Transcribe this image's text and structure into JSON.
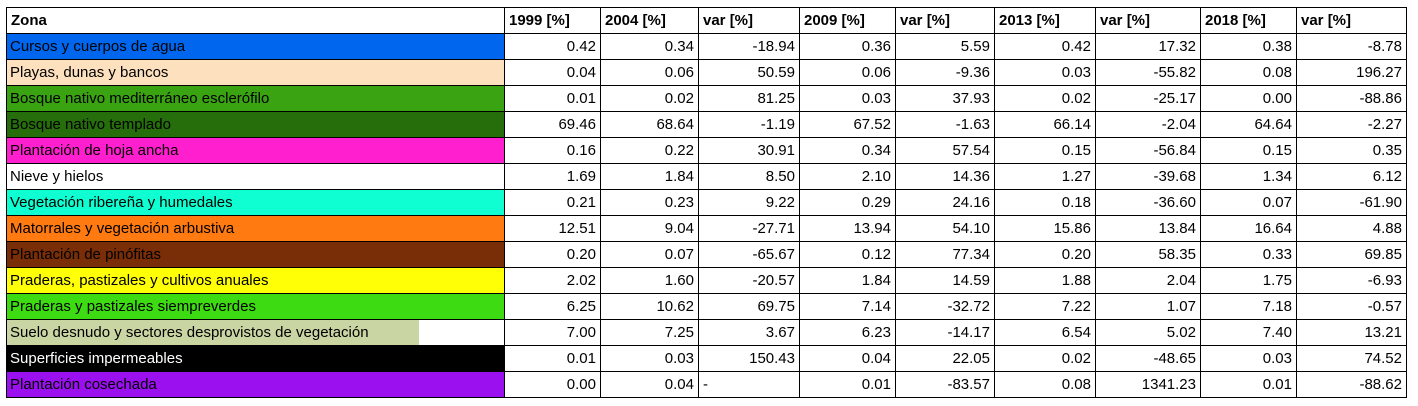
{
  "headers": [
    "Zona",
    "1999 [%]",
    "2004 [%]",
    "var [%]",
    "2009 [%]",
    "var [%]",
    "2013 [%]",
    "var [%]",
    "2018 [%]",
    "var [%]"
  ],
  "rows": [
    {
      "zona": "Cursos y cuerpos de agua",
      "color": "#0066ee",
      "text_color": "#000000",
      "values": [
        "0.42",
        "0.34",
        "-18.94",
        "0.36",
        "5.59",
        "0.42",
        "17.32",
        "0.38",
        "-8.78"
      ]
    },
    {
      "zona": "Playas, dunas y bancos",
      "color": "#fde0bd",
      "text_color": "#000000",
      "values": [
        "0.04",
        "0.06",
        "50.59",
        "0.06",
        "-9.36",
        "0.03",
        "-55.82",
        "0.08",
        "196.27"
      ]
    },
    {
      "zona": "Bosque nativo mediterráneo esclerófilo",
      "color": "#3aa312",
      "text_color": "#000000",
      "values": [
        "0.01",
        "0.02",
        "81.25",
        "0.03",
        "37.93",
        "0.02",
        "-25.17",
        "0.00",
        "-88.86"
      ]
    },
    {
      "zona": "Bosque nativo templado",
      "color": "#266d0c",
      "text_color": "#000000",
      "values": [
        "69.46",
        "68.64",
        "-1.19",
        "67.52",
        "-1.63",
        "66.14",
        "-2.04",
        "64.64",
        "-2.27"
      ]
    },
    {
      "zona": "Plantación de hoja ancha",
      "color": "#ff1fcf",
      "text_color": "#000000",
      "values": [
        "0.16",
        "0.22",
        "30.91",
        "0.34",
        "57.54",
        "0.15",
        "-56.84",
        "0.15",
        "0.35"
      ]
    },
    {
      "zona": "Nieve y hielos",
      "color": "#ffffff",
      "text_color": "#000000",
      "values": [
        "1.69",
        "1.84",
        "8.50",
        "2.10",
        "14.36",
        "1.27",
        "-39.68",
        "1.34",
        "6.12"
      ]
    },
    {
      "zona": "Vegetación ribereña y humedales",
      "color": "#10ffd2",
      "text_color": "#000000",
      "values": [
        "0.21",
        "0.23",
        "9.22",
        "0.29",
        "24.16",
        "0.18",
        "-36.60",
        "0.07",
        "-61.90"
      ]
    },
    {
      "zona": "Matorrales y vegetación arbustiva",
      "color": "#ff7a10",
      "text_color": "#000000",
      "values": [
        "12.51",
        "9.04",
        "-27.71",
        "13.94",
        "54.10",
        "15.86",
        "13.84",
        "16.64",
        "4.88"
      ]
    },
    {
      "zona": "Plantación de pinófitas",
      "color": "#7a2e07",
      "text_color": "#000000",
      "values": [
        "0.20",
        "0.07",
        "-65.67",
        "0.12",
        "77.34",
        "0.20",
        "58.35",
        "0.33",
        "69.85"
      ]
    },
    {
      "zona": "Praderas, pastizales y cultivos anuales",
      "color": "#ffff05",
      "text_color": "#000000",
      "values": [
        "2.02",
        "1.60",
        "-20.57",
        "1.84",
        "14.59",
        "1.88",
        "2.04",
        "1.75",
        "-6.93"
      ]
    },
    {
      "zona": "Praderas y pastizales siempreverdes",
      "color": "#3ddc12",
      "text_color": "#000000",
      "values": [
        "6.25",
        "10.62",
        "69.75",
        "7.14",
        "-32.72",
        "7.22",
        "1.07",
        "7.18",
        "-0.57"
      ]
    },
    {
      "zona": "Suelo desnudo y sectores desprovistos de vegetación",
      "color": "#c9d5a3",
      "text_color": "#000000",
      "partial": true,
      "values": [
        "7.00",
        "7.25",
        "3.67",
        "6.23",
        "-14.17",
        "6.54",
        "5.02",
        "7.40",
        "13.21"
      ]
    },
    {
      "zona": "Superficies impermeables",
      "color": "#000000",
      "text_color": "#ffffff",
      "values": [
        "0.01",
        "0.03",
        "150.43",
        "0.04",
        "22.05",
        "0.02",
        "-48.65",
        "0.03",
        "74.52"
      ]
    },
    {
      "zona": "Plantación cosechada",
      "color": "#9a10ee",
      "text_color": "#000000",
      "values": [
        "0.00",
        "0.04",
        "-",
        "0.01",
        "-83.57",
        "0.08",
        "1341.23",
        "0.01",
        "-88.62"
      ]
    }
  ]
}
